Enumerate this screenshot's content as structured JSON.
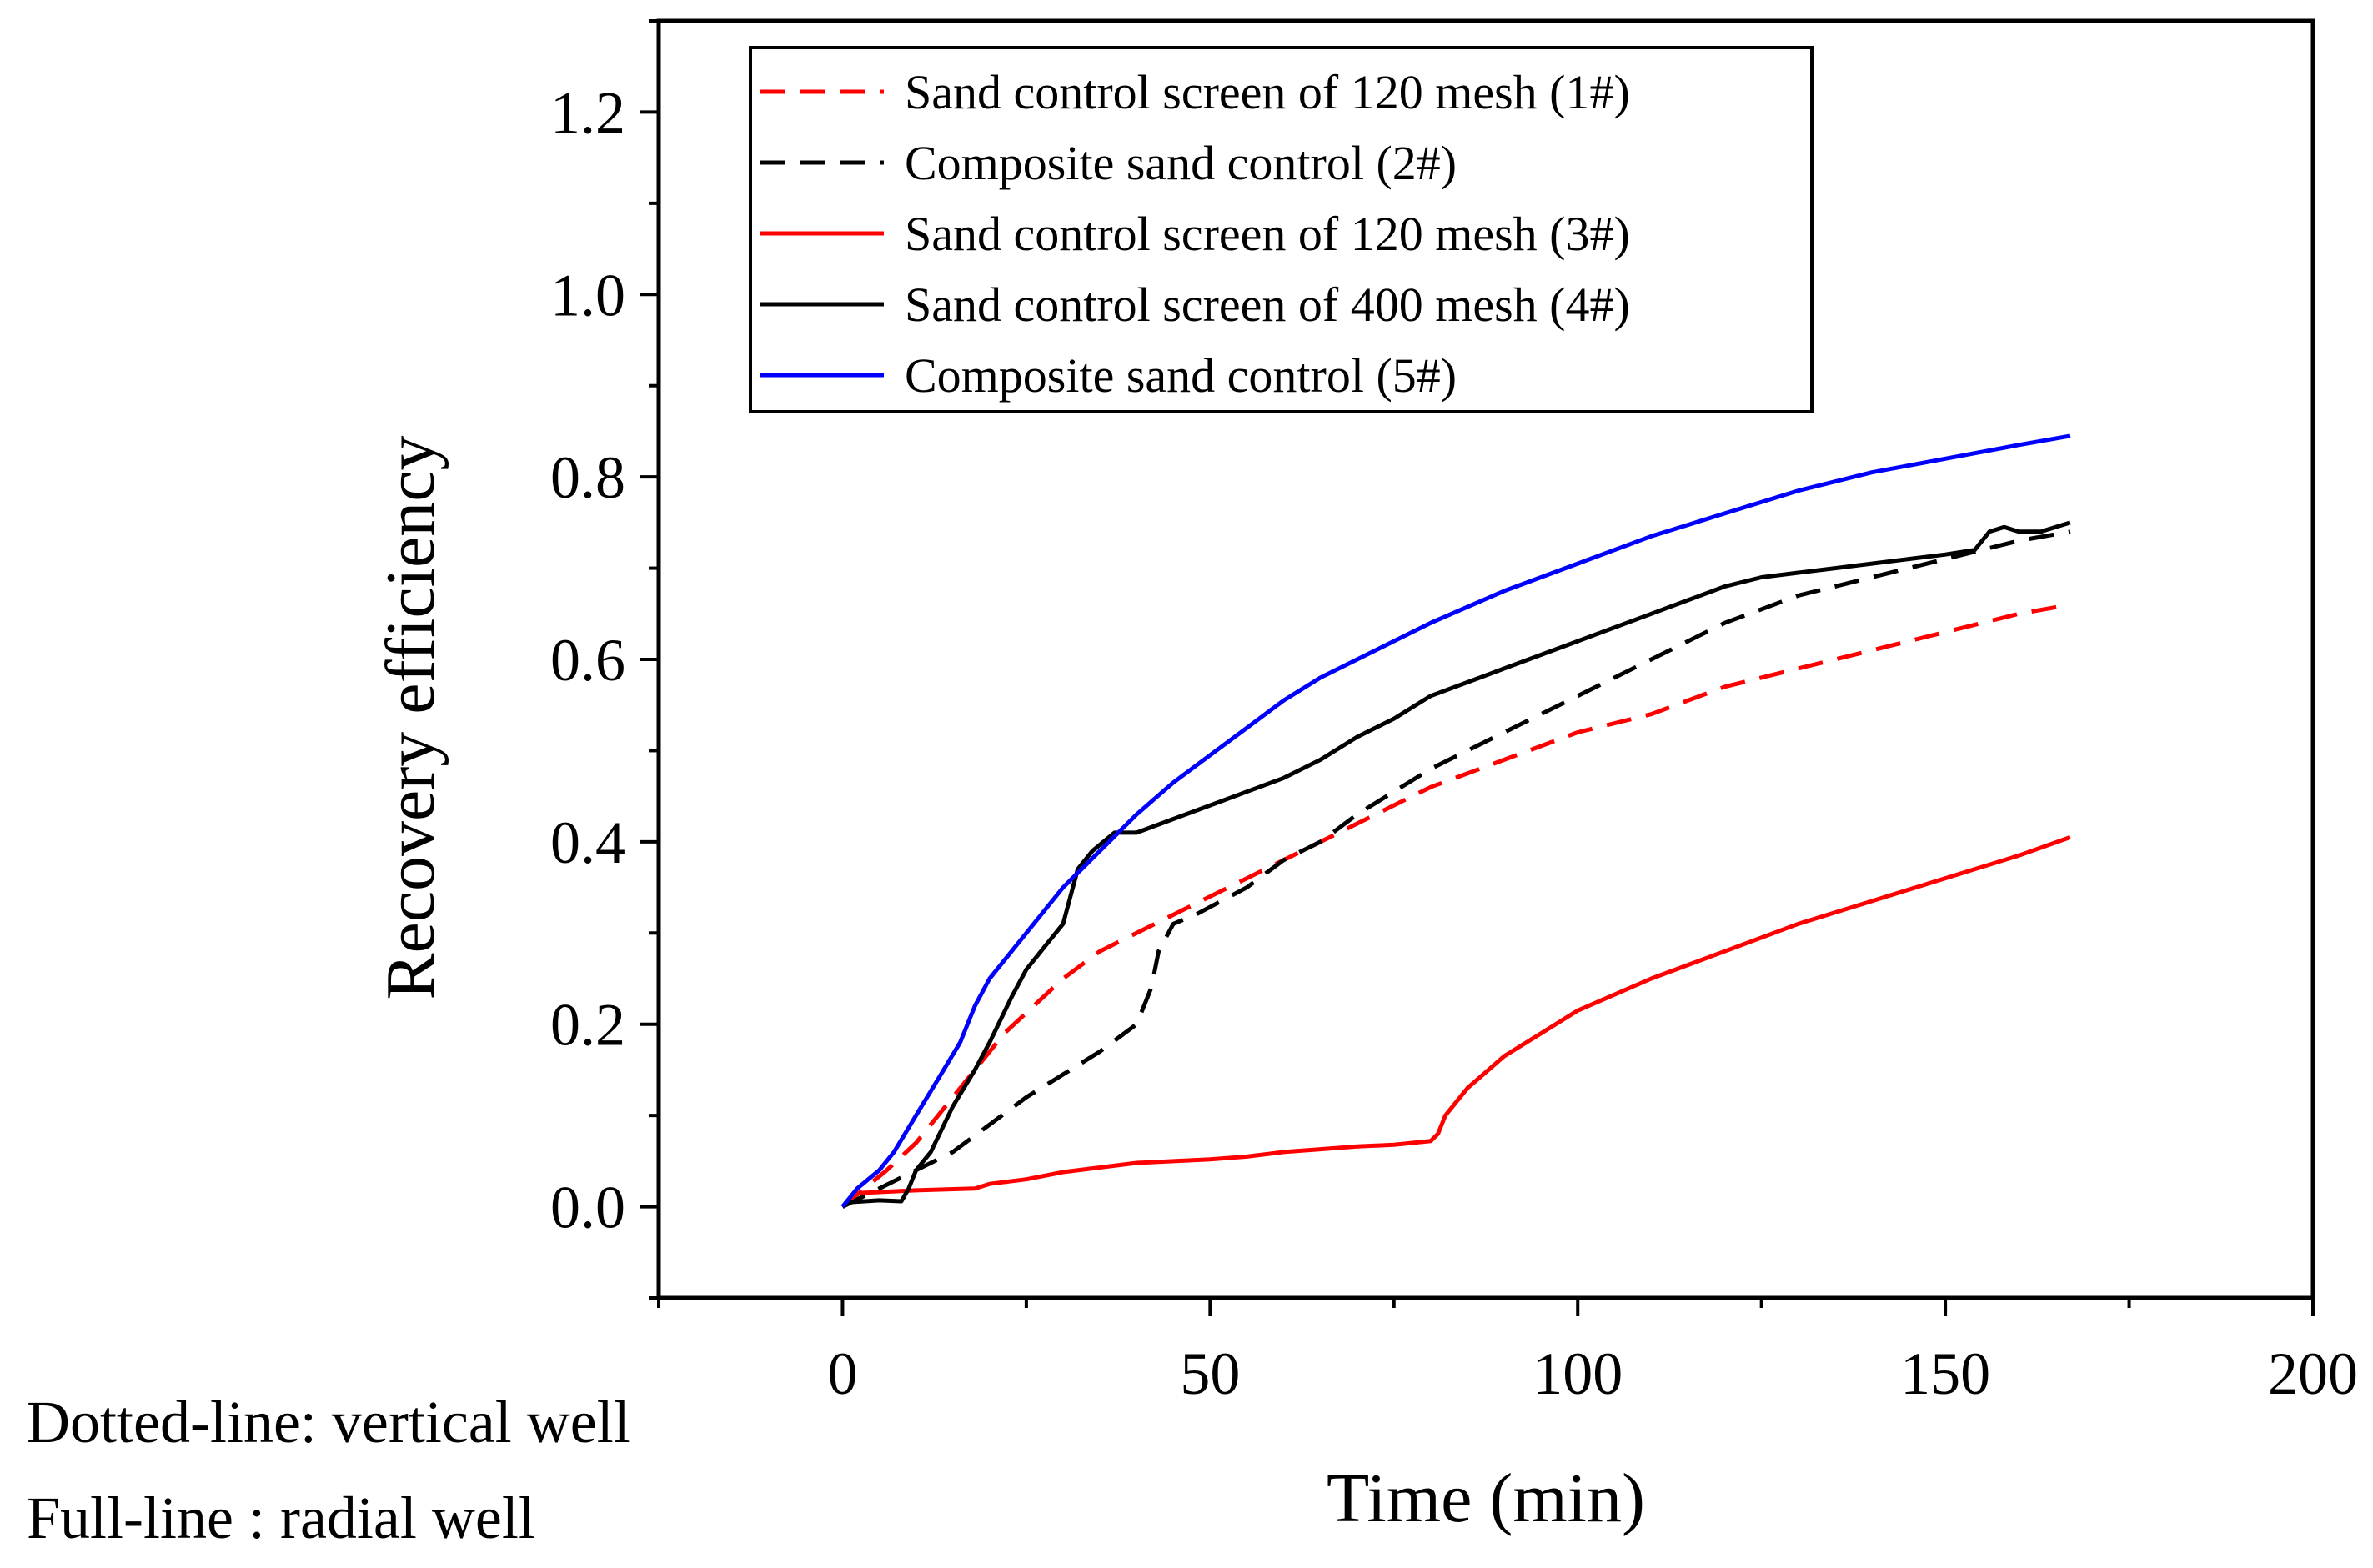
{
  "chart_data": {
    "type": "line",
    "title": "",
    "xlabel": "Time (min)",
    "ylabel": "Recovery efficiency",
    "xlim": [
      -25,
      200
    ],
    "ylim": [
      -0.1,
      1.3
    ],
    "xticks": [
      0,
      50,
      100,
      150,
      200
    ],
    "yticks": [
      0.0,
      0.2,
      0.4,
      0.6,
      0.8,
      1.0,
      1.2
    ],
    "xtick_labels": [
      "0",
      "50",
      "100",
      "150",
      "200"
    ],
    "ytick_labels": [
      "0.0",
      "0.2",
      "0.4",
      "0.6",
      "0.8",
      "1.0",
      "1.2"
    ],
    "legend_position": "top-left",
    "series": [
      {
        "name": "Sand control screen of 120 mesh (1#)",
        "color": "#ff0000",
        "style": "dashed",
        "x": [
          0,
          3,
          6,
          10,
          14,
          18,
          22,
          26,
          30,
          35,
          40,
          45,
          50,
          55,
          60,
          65,
          70,
          80,
          90,
          100,
          110,
          120,
          130,
          140,
          150,
          160,
          167
        ],
        "y": [
          0,
          0.02,
          0.04,
          0.07,
          0.11,
          0.15,
          0.19,
          0.22,
          0.25,
          0.28,
          0.3,
          0.32,
          0.34,
          0.36,
          0.38,
          0.4,
          0.42,
          0.46,
          0.49,
          0.52,
          0.54,
          0.57,
          0.59,
          0.61,
          0.63,
          0.65,
          0.66
        ]
      },
      {
        "name": "Composite sand control (2#)",
        "color": "#000000",
        "style": "dashed",
        "x": [
          0,
          5,
          10,
          15,
          20,
          25,
          30,
          35,
          40,
          42,
          43,
          45,
          48,
          55,
          60,
          65,
          70,
          80,
          90,
          100,
          110,
          120,
          130,
          140,
          150,
          160,
          167
        ],
        "y": [
          0,
          0.02,
          0.04,
          0.06,
          0.09,
          0.12,
          0.145,
          0.17,
          0.2,
          0.24,
          0.28,
          0.31,
          0.32,
          0.35,
          0.38,
          0.4,
          0.43,
          0.48,
          0.52,
          0.56,
          0.6,
          0.64,
          0.67,
          0.69,
          0.71,
          0.73,
          0.74
        ]
      },
      {
        "name": "Sand control screen of 120 mesh (3#)",
        "color": "#ff0000",
        "style": "solid",
        "x": [
          0,
          2,
          10,
          18,
          20,
          25,
          30,
          35,
          40,
          45,
          50,
          55,
          60,
          65,
          70,
          75,
          80,
          81,
          82,
          83,
          85,
          90,
          95,
          100,
          110,
          120,
          130,
          140,
          150,
          160,
          167
        ],
        "y": [
          0,
          0.015,
          0.018,
          0.02,
          0.025,
          0.03,
          0.038,
          0.043,
          0.048,
          0.05,
          0.052,
          0.055,
          0.06,
          0.063,
          0.066,
          0.068,
          0.072,
          0.08,
          0.1,
          0.11,
          0.13,
          0.165,
          0.19,
          0.215,
          0.25,
          0.28,
          0.31,
          0.335,
          0.36,
          0.385,
          0.405
        ]
      },
      {
        "name": "Sand control screen of 400 mesh (4#)",
        "color": "#000000",
        "style": "solid",
        "x": [
          0,
          1,
          5,
          8,
          9,
          10,
          12,
          15,
          18,
          20,
          23,
          25,
          28,
          30,
          31,
          32,
          34,
          37,
          40,
          45,
          50,
          55,
          60,
          65,
          70,
          75,
          80,
          85,
          90,
          95,
          100,
          105,
          110,
          115,
          120,
          125,
          130,
          135,
          140,
          145,
          150,
          154,
          155,
          156,
          158,
          160,
          163,
          165,
          167
        ],
        "y": [
          0,
          0.005,
          0.007,
          0.006,
          0.02,
          0.04,
          0.06,
          0.11,
          0.15,
          0.18,
          0.23,
          0.26,
          0.29,
          0.31,
          0.34,
          0.37,
          0.39,
          0.41,
          0.41,
          0.425,
          0.44,
          0.455,
          0.47,
          0.49,
          0.515,
          0.535,
          0.56,
          0.575,
          0.59,
          0.605,
          0.62,
          0.635,
          0.65,
          0.665,
          0.68,
          0.69,
          0.695,
          0.7,
          0.705,
          0.71,
          0.715,
          0.72,
          0.73,
          0.74,
          0.745,
          0.74,
          0.74,
          0.745,
          0.75
        ]
      },
      {
        "name": "Composite sand control (5#)",
        "color": "#0000ff",
        "style": "solid",
        "x": [
          0,
          2,
          5,
          7,
          10,
          13,
          16,
          18,
          20,
          25,
          30,
          35,
          40,
          45,
          50,
          55,
          60,
          65,
          70,
          80,
          90,
          100,
          110,
          120,
          130,
          140,
          150,
          160,
          167
        ],
        "y": [
          0,
          0.02,
          0.04,
          0.06,
          0.1,
          0.14,
          0.18,
          0.22,
          0.25,
          0.3,
          0.35,
          0.39,
          0.43,
          0.465,
          0.495,
          0.525,
          0.555,
          0.58,
          0.6,
          0.64,
          0.675,
          0.705,
          0.735,
          0.76,
          0.785,
          0.805,
          0.82,
          0.835,
          0.845
        ]
      }
    ]
  },
  "notes": {
    "line1": "Dotted-line: vertical well",
    "line2": "Full-line : radial well"
  }
}
